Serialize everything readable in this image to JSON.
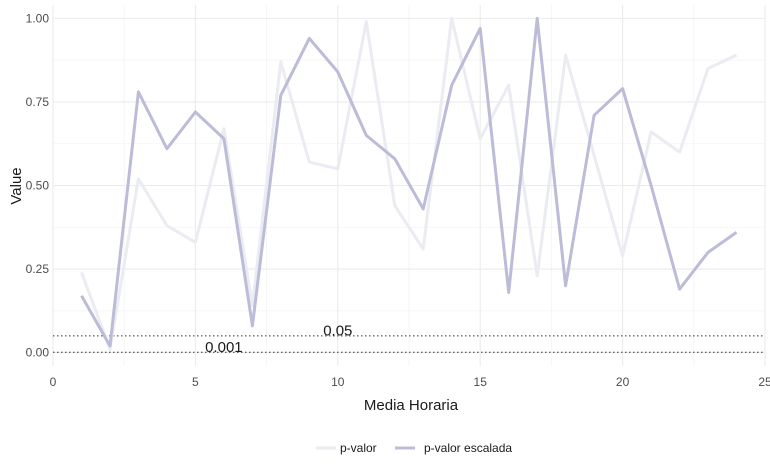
{
  "chart_data": {
    "type": "line",
    "xlabel": "Media Horaria",
    "ylabel": "Value",
    "xlim": [
      0,
      25
    ],
    "ylim": [
      -0.04,
      1.04
    ],
    "x_ticks": [
      "0",
      "5",
      "10",
      "15",
      "20",
      "25"
    ],
    "y_ticks": [
      "0.00",
      "0.25",
      "0.50",
      "0.75",
      "1.00"
    ],
    "grid": true,
    "legend_position": "bottom",
    "x": [
      1,
      2,
      3,
      4,
      5,
      6,
      7,
      8,
      9,
      10,
      11,
      12,
      13,
      14,
      15,
      16,
      17,
      18,
      19,
      20,
      21,
      22,
      23,
      24
    ],
    "series": [
      {
        "name": "p-valor",
        "color": "#ebebf2",
        "values": [
          0.24,
          0.01,
          0.52,
          0.38,
          0.33,
          0.67,
          0.14,
          0.87,
          0.57,
          0.55,
          0.99,
          0.44,
          0.31,
          1.0,
          0.64,
          0.8,
          0.23,
          0.89,
          0.59,
          0.29,
          0.66,
          0.6,
          0.85,
          0.89
        ]
      },
      {
        "name": "p-valor escalada",
        "color": "#bcbcd9",
        "values": [
          0.17,
          0.02,
          0.78,
          0.61,
          0.72,
          0.64,
          0.08,
          0.77,
          0.94,
          0.84,
          0.65,
          0.58,
          0.43,
          0.8,
          0.97,
          0.18,
          1.0,
          0.2,
          0.71,
          0.79,
          0.5,
          0.19,
          0.3,
          0.36
        ]
      }
    ],
    "reference_lines": [
      {
        "y": 0.05,
        "label": "0.05",
        "label_x": 10
      },
      {
        "y": 0.001,
        "label": "0.001",
        "label_x": 6
      }
    ]
  }
}
